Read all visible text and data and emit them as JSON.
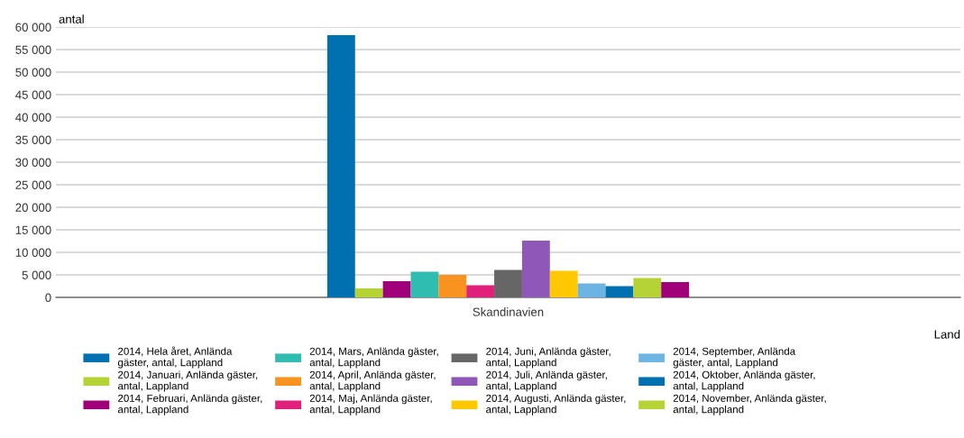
{
  "chart_data": {
    "type": "bar",
    "categories": [
      "Skandinavien"
    ],
    "xlabel": "Land",
    "ylabel": "antal",
    "ylim": [
      0,
      60000
    ],
    "yticks": [
      {
        "value": 0,
        "label": "0"
      },
      {
        "value": 5000,
        "label": "5 000"
      },
      {
        "value": 10000,
        "label": "10 000"
      },
      {
        "value": 15000,
        "label": "15 000"
      },
      {
        "value": 20000,
        "label": "20 000"
      },
      {
        "value": 25000,
        "label": "25 000"
      },
      {
        "value": 30000,
        "label": "30 000"
      },
      {
        "value": 35000,
        "label": "35 000"
      },
      {
        "value": 40000,
        "label": "40 000"
      },
      {
        "value": 45000,
        "label": "45 000"
      },
      {
        "value": 50000,
        "label": "50 000"
      },
      {
        "value": 55000,
        "label": "55 000"
      },
      {
        "value": 60000,
        "label": "60 000"
      }
    ],
    "grid": "y",
    "legend": "bottom",
    "series": [
      {
        "name": "2014, Hela året, Anlända\ngäster, antal, Lappland",
        "color": "#0070b0",
        "values": [
          58200
        ]
      },
      {
        "name": "2014, Januari, Anlända gäster,\nantal, Lappland",
        "color": "#b5d334",
        "values": [
          2000
        ]
      },
      {
        "name": "2014, Februari, Anlända gäster,\nantal, Lappland",
        "color": "#a0007a",
        "values": [
          3600
        ]
      },
      {
        "name": "2014, Mars, Anlända gäster,\nantal, Lappland",
        "color": "#2ebdb0",
        "values": [
          5700
        ]
      },
      {
        "name": "2014, April, Anlända gäster,\nantal, Lappland",
        "color": "#f7931e",
        "values": [
          5000
        ]
      },
      {
        "name": "2014, Maj, Anlända gäster,\nantal, Lappland",
        "color": "#e0207a",
        "values": [
          2700
        ]
      },
      {
        "name": "2014, Juni, Anlända gäster,\nantal, Lappland",
        "color": "#666666",
        "values": [
          6100
        ]
      },
      {
        "name": "2014, Juli, Anlända gäster,\nantal, Lappland",
        "color": "#8e57b8",
        "values": [
          12600
        ]
      },
      {
        "name": "2014, Augusti, Anlända gäster,\nantal, Lappland",
        "color": "#ffc800",
        "values": [
          5900
        ]
      },
      {
        "name": "2014, September, Anlända\ngäster, antal, Lappland",
        "color": "#6cb4e4",
        "values": [
          3100
        ]
      },
      {
        "name": "2014, Oktober, Anlända gäster,\nantal, Lappland",
        "color": "#0070b0",
        "values": [
          2500
        ]
      },
      {
        "name": "2014, November, Anlända gäster,\nantal, Lappland",
        "color": "#b5d334",
        "values": [
          4300
        ]
      },
      {
        "color": "#a0007a",
        "values": [
          3400
        ]
      }
    ]
  }
}
